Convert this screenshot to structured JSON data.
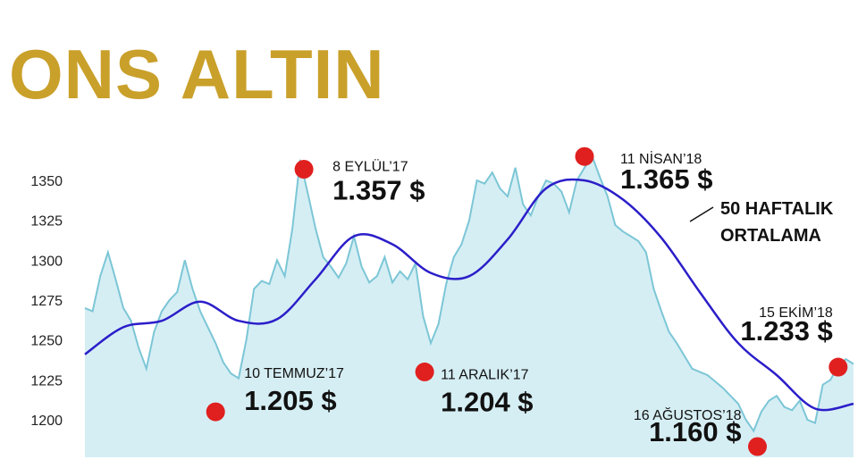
{
  "title": "ONS ALTIN",
  "colors": {
    "title": "#c9a02a",
    "area_fill": "#d5eef4",
    "price_line": "#7cc6d6",
    "ma_line": "#2b1ec9",
    "marker": "#e0201f"
  },
  "chart_data": {
    "type": "line",
    "title": "ONS ALTIN",
    "xlabel": "",
    "ylabel": "",
    "ylim": [
      1180,
      1380
    ],
    "yticks": [
      "1350",
      "1325",
      "1300",
      "1275",
      "1250",
      "1225",
      "1200"
    ],
    "ytick_values": [
      1350,
      1325,
      1300,
      1275,
      1250,
      1225,
      1200
    ],
    "xlim": [
      0,
      100
    ],
    "series": [
      {
        "kind": "area",
        "x": [
          0,
          1,
          2,
          3,
          4,
          5,
          6,
          7,
          8,
          9,
          10,
          11,
          12,
          13,
          14,
          15,
          16,
          17,
          18,
          19,
          20,
          21,
          22,
          23,
          24,
          25,
          26,
          27,
          28,
          29,
          30,
          31,
          32,
          33,
          34,
          35,
          36,
          37,
          38,
          39,
          40,
          41,
          42,
          43,
          44,
          45,
          46,
          47,
          48,
          49,
          50,
          51,
          52,
          53,
          54,
          55,
          56,
          57,
          58,
          59,
          60,
          61,
          62,
          63,
          64,
          65,
          66,
          67,
          68,
          69,
          70,
          71,
          72,
          73,
          74,
          75,
          76,
          77,
          78,
          79,
          80,
          81,
          82,
          83,
          84,
          85,
          86,
          87,
          88,
          89,
          90,
          91,
          92,
          93,
          94,
          95,
          96,
          97,
          98,
          99,
          100
        ],
        "values": [
          1270,
          1268,
          1290,
          1305,
          1288,
          1270,
          1262,
          1245,
          1232,
          1255,
          1268,
          1275,
          1280,
          1300,
          1282,
          1268,
          1258,
          1248,
          1236,
          1229,
          1226,
          1250,
          1282,
          1287,
          1285,
          1300,
          1290,
          1320,
          1363,
          1342,
          1320,
          1302,
          1296,
          1289,
          1298,
          1315,
          1296,
          1286,
          1290,
          1302,
          1286,
          1293,
          1288,
          1298,
          1265,
          1248,
          1260,
          1285,
          1302,
          1310,
          1325,
          1350,
          1348,
          1355,
          1345,
          1340,
          1358,
          1335,
          1328,
          1340,
          1350,
          1348,
          1343,
          1330,
          1350,
          1358,
          1365,
          1352,
          1340,
          1322,
          1318,
          1315,
          1312,
          1305,
          1282,
          1268,
          1255,
          1248,
          1240,
          1232,
          1230,
          1228,
          1224,
          1220,
          1215,
          1210,
          1200,
          1193,
          1205,
          1212,
          1215,
          1208,
          1206,
          1212,
          1200,
          1198,
          1222,
          1225,
          1234,
          1238,
          1235
        ]
      },
      {
        "kind": "line",
        "x": [
          0,
          5,
          10,
          15,
          20,
          25,
          30,
          35,
          40,
          45,
          50,
          55,
          60,
          65,
          70,
          75,
          80,
          85,
          90,
          95,
          100
        ],
        "values": [
          1241,
          1258,
          1262,
          1274,
          1262,
          1263,
          1288,
          1315,
          1310,
          1292,
          1290,
          1313,
          1345,
          1350,
          1338,
          1314,
          1280,
          1248,
          1228,
          1207,
          1210
        ]
      }
    ],
    "legend": "none",
    "grid": false
  },
  "annotations": [
    {
      "date": "10 TEMMUZ’17",
      "value": "1.205 $",
      "mx": 17,
      "my": 1205
    },
    {
      "date": "8 EYLÜL’17",
      "value": "1.357 $",
      "mx": 28.5,
      "my": 1357
    },
    {
      "date": "11 ARALIK’17",
      "value": "1.204 $",
      "mx": 44.2,
      "my": 1230
    },
    {
      "date": "11 NİSAN’18",
      "value": "1.365 $",
      "mx": 65,
      "my": 1365
    },
    {
      "date": "16 AĞUSTOS’18",
      "value": "1.160 $",
      "mx": 87.5,
      "my": 1160
    },
    {
      "date": "15 EKİM’18",
      "value": "1.233 $",
      "mx": 98,
      "my": 1233
    }
  ],
  "ma_label_line1": "50 HAFTALIK",
  "ma_label_line2": "ORTALAMA"
}
